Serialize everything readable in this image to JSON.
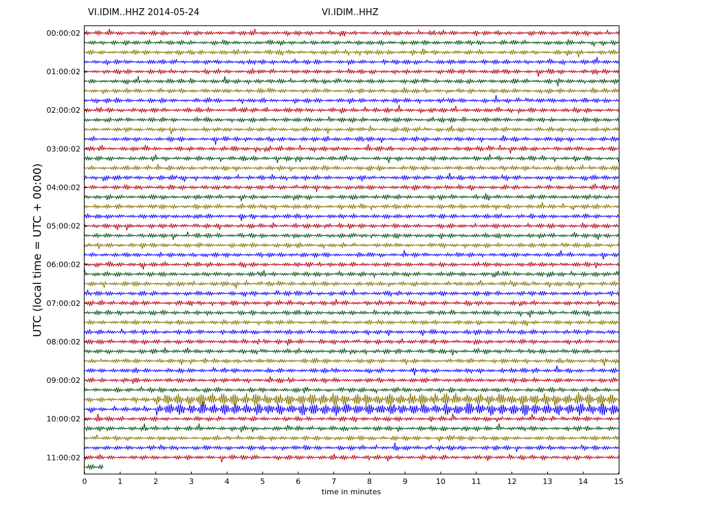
{
  "header": {
    "title_left": "VI.IDIM..HHZ 2014-05-24",
    "title_center": "VI.IDIM..HHZ"
  },
  "chart_data": {
    "type": "line",
    "title": "VI.IDIM..HHZ",
    "date": "2014-05-24",
    "xlabel": "time in minutes",
    "ylabel": "UTC (local time = UTC + 00:00)",
    "xlim": [
      0,
      15
    ],
    "xticks": [
      0,
      1,
      2,
      3,
      4,
      5,
      6,
      7,
      8,
      9,
      10,
      11,
      12,
      13,
      14,
      15
    ],
    "yticks": [
      "00:00:02",
      "01:00:02",
      "02:00:02",
      "03:00:02",
      "04:00:02",
      "05:00:02",
      "06:00:02",
      "07:00:02",
      "08:00:02",
      "09:00:02",
      "10:00:02",
      "11:00:02"
    ],
    "trace_interval_minutes": 15,
    "trace_count": 46,
    "colors": [
      "#b2000f",
      "#004c12",
      "#847200",
      "#0e01ff"
    ],
    "last_trace_end_minute": 0.55,
    "notable_events": [
      {
        "trace_index": 38,
        "start_minute": 2.0,
        "end_minute": 15,
        "amplitude": "high"
      },
      {
        "trace_index": 39,
        "start_minute": 2.0,
        "end_minute": 15,
        "amplitude": "high"
      }
    ],
    "grid": false,
    "legend": "none"
  }
}
